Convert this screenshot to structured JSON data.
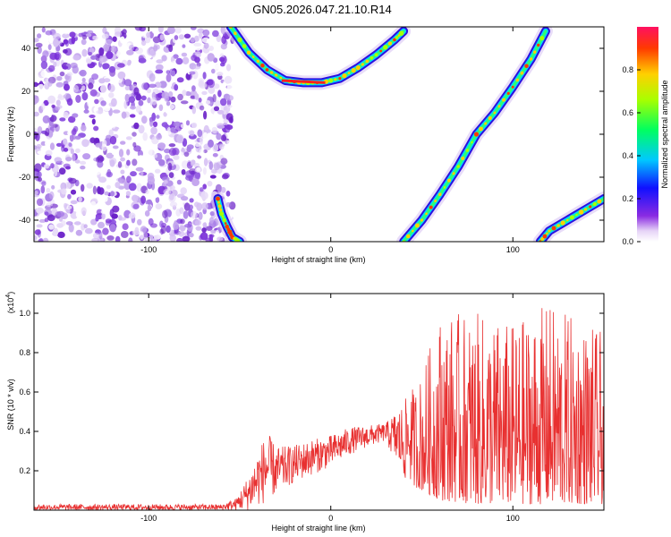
{
  "title": "GN05.2026.047.21.10.R14",
  "chart_data": [
    {
      "type": "heatmap",
      "name": "spectrogram",
      "xlabel": "Height of straight line (km)",
      "ylabel": "Frequency (Hz)",
      "xlim": [
        -163,
        150
      ],
      "ylim": [
        -50,
        50
      ],
      "xticks": [
        -100,
        0,
        100
      ],
      "yticks": [
        -40,
        -20,
        0,
        20,
        40
      ],
      "colorbar": {
        "label": "Normalized spectral amplitude",
        "range": [
          0,
          1
        ],
        "ticks": [
          "0.0",
          "0.2",
          "0.4",
          "0.6",
          "0.8"
        ],
        "tick_values": [
          0.0,
          0.2,
          0.4,
          0.6,
          0.8
        ]
      },
      "noise_region_x": [
        -163,
        -60
      ],
      "curves": [
        {
          "name": "parabola-upper",
          "x": [
            -55,
            -45,
            -35,
            -25,
            -15,
            -5,
            5,
            15,
            25,
            35,
            40
          ],
          "y": [
            50,
            38,
            30,
            25,
            24,
            24,
            26,
            31,
            37,
            44,
            48
          ]
        },
        {
          "name": "lower-left-arc",
          "x": [
            -62,
            -60,
            -57,
            -54,
            -50
          ],
          "y": [
            -30,
            -37,
            -43,
            -48,
            -50
          ]
        },
        {
          "name": "diagonal",
          "x": [
            40,
            50,
            60,
            70,
            80,
            90,
            100,
            110,
            118
          ],
          "y": [
            -50,
            -40,
            -28,
            -15,
            0,
            10,
            22,
            35,
            48
          ]
        },
        {
          "name": "lower-right-arc",
          "x": [
            115,
            120,
            130,
            140,
            150
          ],
          "y": [
            -50,
            -45,
            -40,
            -35,
            -30
          ]
        }
      ]
    },
    {
      "type": "line",
      "name": "snr",
      "xlabel": "Height of straight line (km)",
      "ylabel": "SNR (10 * v/v)",
      "scale_label": "(x10",
      "scale_exp": "4",
      "xlim": [
        -163,
        150
      ],
      "ylim": [
        0,
        1.1
      ],
      "xticks": [
        -100,
        0,
        100
      ],
      "yticks": [
        0.2,
        0.4,
        0.6,
        0.8,
        1.0
      ],
      "color": "#e83030",
      "envelope": [
        {
          "x": -163,
          "low": 0.0,
          "high": 0.03
        },
        {
          "x": -60,
          "low": 0.0,
          "high": 0.03
        },
        {
          "x": -52,
          "low": 0.0,
          "high": 0.06
        },
        {
          "x": -45,
          "low": 0.0,
          "high": 0.18
        },
        {
          "x": -40,
          "low": 0.02,
          "high": 0.3
        },
        {
          "x": -35,
          "low": 0.04,
          "high": 0.4
        },
        {
          "x": -30,
          "low": 0.08,
          "high": 0.32
        },
        {
          "x": -20,
          "low": 0.14,
          "high": 0.33
        },
        {
          "x": -10,
          "low": 0.18,
          "high": 0.36
        },
        {
          "x": 0,
          "low": 0.22,
          "high": 0.38
        },
        {
          "x": 10,
          "low": 0.28,
          "high": 0.42
        },
        {
          "x": 20,
          "low": 0.32,
          "high": 0.43
        },
        {
          "x": 30,
          "low": 0.35,
          "high": 0.44
        },
        {
          "x": 40,
          "low": 0.15,
          "high": 0.55
        },
        {
          "x": 50,
          "low": 0.1,
          "high": 0.7
        },
        {
          "x": 60,
          "low": 0.05,
          "high": 1.0
        },
        {
          "x": 80,
          "low": 0.03,
          "high": 1.0
        },
        {
          "x": 100,
          "low": 0.03,
          "high": 0.95
        },
        {
          "x": 120,
          "low": 0.03,
          "high": 1.05
        },
        {
          "x": 150,
          "low": 0.03,
          "high": 0.9
        }
      ]
    }
  ]
}
